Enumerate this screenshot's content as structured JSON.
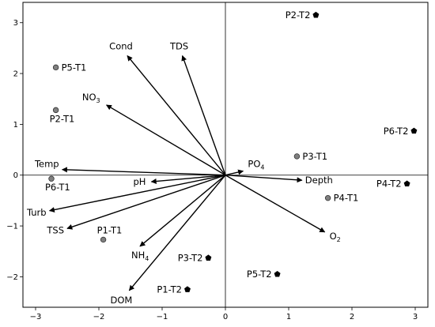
{
  "chart_data": {
    "type": "scatter",
    "xlim": [
      -3.2,
      3.2
    ],
    "ylim": [
      -2.6,
      3.4
    ],
    "x_ticks": [
      -3,
      -2,
      -1,
      0,
      1,
      2,
      3
    ],
    "y_ticks": [
      3,
      2,
      1,
      0,
      -1,
      -2
    ],
    "zero_lines": true,
    "grid": false,
    "samples": [
      {
        "label": "P2-T2",
        "x": 1.43,
        "y": 3.15,
        "marker": "pentagon",
        "color": "#000000"
      },
      {
        "label": "P6-T2",
        "x": 2.98,
        "y": 0.87,
        "marker": "pentagon",
        "color": "#000000"
      },
      {
        "label": "P4-T2",
        "x": 2.87,
        "y": -0.17,
        "marker": "pentagon",
        "color": "#000000"
      },
      {
        "label": "P3-T2",
        "x": -0.27,
        "y": -1.63,
        "marker": "pentagon",
        "color": "#000000"
      },
      {
        "label": "P1-T2",
        "x": -0.6,
        "y": -2.25,
        "marker": "pentagon",
        "color": "#000000"
      },
      {
        "label": "P5-T2",
        "x": 0.82,
        "y": -1.95,
        "marker": "pentagon",
        "color": "#000000"
      },
      {
        "label": "P5-T1",
        "x": -2.68,
        "y": 2.12,
        "marker": "circle",
        "color": "#808080"
      },
      {
        "label": "P2-T1",
        "x": -2.68,
        "y": 1.28,
        "marker": "circle",
        "color": "#808080"
      },
      {
        "label": "P6-T1",
        "x": -2.75,
        "y": -0.07,
        "marker": "circle",
        "color": "#808080"
      },
      {
        "label": "P1-T1",
        "x": -1.93,
        "y": -1.27,
        "marker": "circle",
        "color": "#808080"
      },
      {
        "label": "P3-T1",
        "x": 1.13,
        "y": 0.37,
        "marker": "circle",
        "color": "#808080"
      },
      {
        "label": "P4-T1",
        "x": 1.62,
        "y": -0.45,
        "marker": "circle",
        "color": "#808080"
      }
    ],
    "vectors": [
      {
        "name": "Cond",
        "sub": "",
        "x": -1.55,
        "y": 2.35
      },
      {
        "name": "TDS",
        "sub": "",
        "x": -0.68,
        "y": 2.35
      },
      {
        "name": "NO",
        "sub": "3",
        "x": -1.88,
        "y": 1.38
      },
      {
        "name": "Temp",
        "sub": "",
        "x": -2.58,
        "y": 0.11
      },
      {
        "name": "pH",
        "sub": "",
        "x": -1.17,
        "y": -0.13
      },
      {
        "name": "Turb",
        "sub": "",
        "x": -2.78,
        "y": -0.7
      },
      {
        "name": "TSS",
        "sub": "",
        "x": -2.5,
        "y": -1.05
      },
      {
        "name": "NH",
        "sub": "4",
        "x": -1.35,
        "y": -1.4
      },
      {
        "name": "DOM",
        "sub": "",
        "x": -1.52,
        "y": -2.27
      },
      {
        "name": "PO",
        "sub": "4",
        "x": 0.28,
        "y": 0.08
      },
      {
        "name": "Depth",
        "sub": "",
        "x": 1.21,
        "y": -0.1
      },
      {
        "name": "O",
        "sub": "2",
        "x": 1.57,
        "y": -1.12
      }
    ]
  }
}
